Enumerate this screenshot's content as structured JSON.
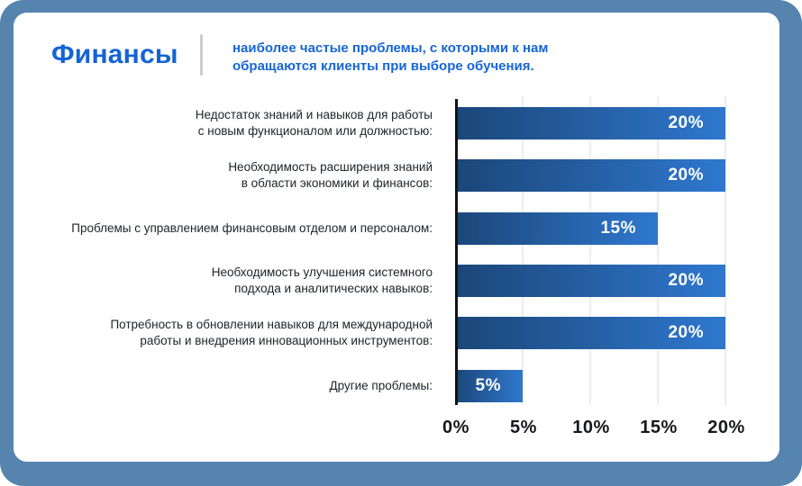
{
  "header": {
    "title": "Финансы",
    "subtitle": "наиболее частые проблемы, с которыми к нам обращаются клиенты при выборе обучения."
  },
  "chart_data": {
    "type": "bar",
    "orientation": "horizontal",
    "title": "Финансы — наиболее частые проблемы, с которыми к нам обращаются клиенты при выборе обучения.",
    "categories": [
      "Недостаток знаний и навыков для работы\nс новым функционалом или должностью:",
      "Необходимость расширения знаний\nв области экономики и финансов:",
      "Проблемы с управлением финансовым отделом и персоналом:",
      "Необходимость улучшения системного\nподхода и аналитических навыков:",
      "Потребность в обновлении навыков для международной\nработы и внедрения инновационных инструментов:",
      "Другие проблемы:"
    ],
    "values": [
      20,
      20,
      15,
      20,
      20,
      5
    ],
    "value_labels": [
      "20%",
      "20%",
      "15%",
      "20%",
      "20%",
      "5%"
    ],
    "xlim": [
      0,
      20
    ],
    "x_ticks": [
      "0%",
      "5%",
      "10%",
      "15%",
      "20%"
    ],
    "grid": "vertical-gridlines-on",
    "legend": "none"
  },
  "colors": {
    "frame_blue": "#5584AF",
    "card_background": "#FFFFFF",
    "title_blue": "#1463D5",
    "subtitle_blue": "#1766D4",
    "divider_gray": "#C8CCD5",
    "bar_gradient_start": "#1B4678",
    "bar_gradient_end": "#2F78CF",
    "bar_value_text": "#FFFFFF",
    "gridline": "#EDEDED",
    "axis_line": "#121212",
    "label_text": "#20242C"
  }
}
